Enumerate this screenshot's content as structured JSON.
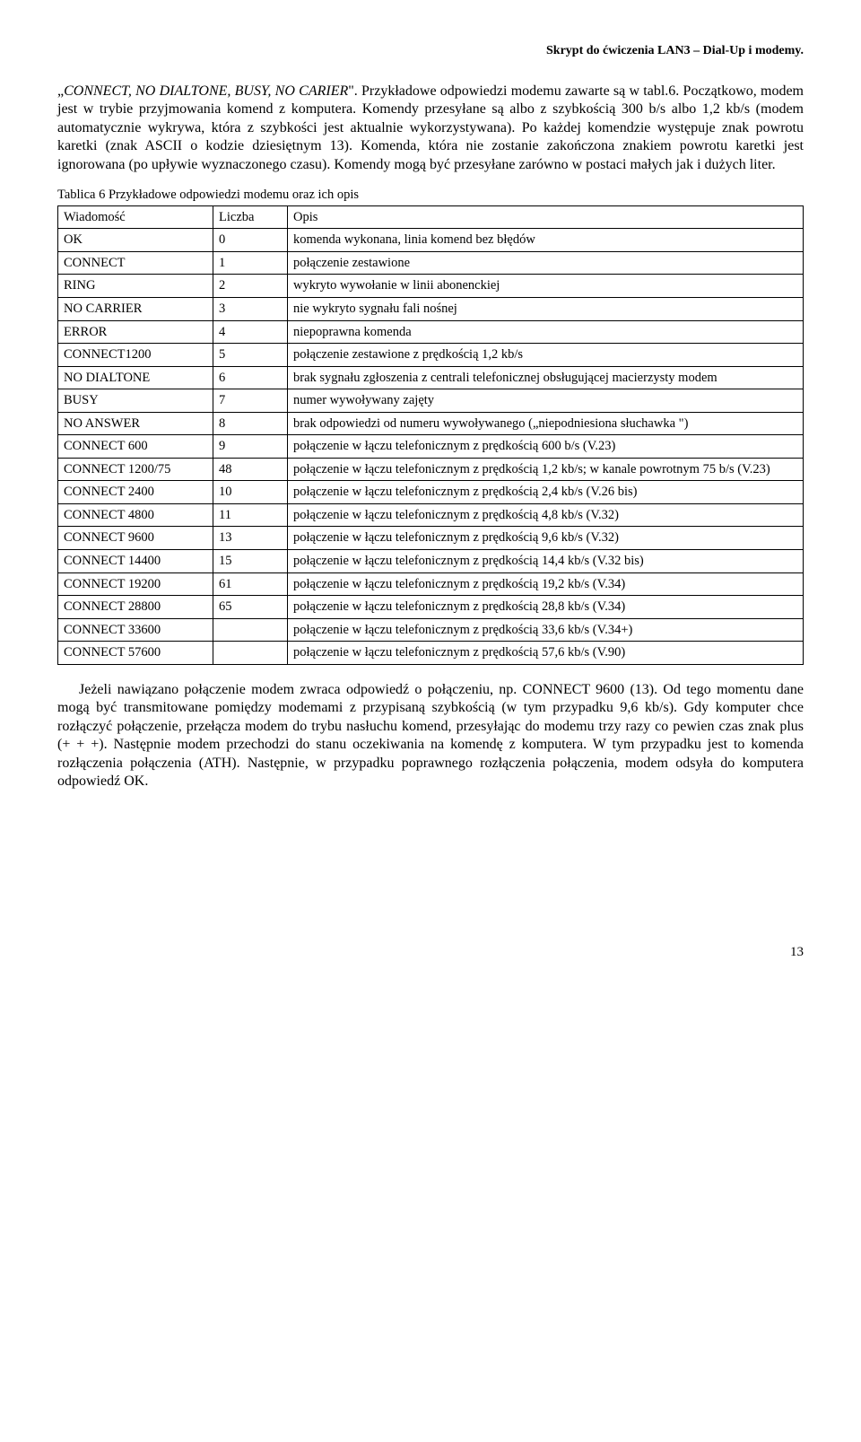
{
  "header": "Skrypt do ćwiczenia LAN3 – Dial-Up i modemy.",
  "para1_lead": "„",
  "para1_italic": "CONNECT, NO DIALTONE, BUSY, NO CARIER",
  "para1_rest": "\". Przykładowe odpowiedzi modemu zawarte są w tabl.6.",
  "para2": "Początkowo, modem jest w trybie przyjmowania komend z komputera. Komendy przesyłane są albo z szybkością 300 b/s albo 1,2 kb/s (modem automatycznie wykrywa, która z szybkości jest aktualnie wykorzystywana). Po każdej komendzie występuje znak powrotu karetki (znak ASCII o kodzie dziesiętnym 13). Komenda, która nie zostanie zakończona znakiem powrotu karetki jest ignorowana (po upływie wyznaczonego czasu). Komendy mogą być przesyłane zarówno w postaci małych jak i dużych liter.",
  "table_caption": "Tablica 6 Przykładowe odpowiedzi modemu oraz ich opis",
  "table_headers": {
    "msg": "Wiadomość",
    "num": "Liczba",
    "desc": "Opis"
  },
  "rows": [
    {
      "msg": "OK",
      "num": "0",
      "desc": "komenda wykonana, linia komend bez błędów"
    },
    {
      "msg": "CONNECT",
      "num": "1",
      "desc": "połączenie zestawione"
    },
    {
      "msg": "RING",
      "num": "2",
      "desc": "wykryto wywołanie w linii abonenckiej"
    },
    {
      "msg": "NO CARRIER",
      "num": "3",
      "desc": "nie wykryto sygnału fali nośnej"
    },
    {
      "msg": "ERROR",
      "num": "4",
      "desc": "niepoprawna komenda"
    },
    {
      "msg": "CONNECT1200",
      "num": "5",
      "desc": "połączenie zestawione z prędkością 1,2 kb/s"
    },
    {
      "msg": "NO DIALTONE",
      "num": "6",
      "desc": "brak sygnału zgłoszenia z centrali telefonicznej obsługującej macierzysty modem"
    },
    {
      "msg": "BUSY",
      "num": "7",
      "desc": "numer wywoływany zajęty"
    },
    {
      "msg": "NO ANSWER",
      "num": "8",
      "desc": "brak odpowiedzi od numeru wywoływanego („niepodniesiona słuchawka \")"
    },
    {
      "msg": "CONNECT 600",
      "num": "9",
      "desc": "połączenie w łączu telefonicznym z prędkością 600 b/s (V.23)"
    },
    {
      "msg": "CONNECT 1200/75",
      "num": "48",
      "desc": "połączenie w łączu telefonicznym z prędkością 1,2 kb/s; w kanale powrotnym 75 b/s (V.23)"
    },
    {
      "msg": "CONNECT 2400",
      "num": "10",
      "desc": "połączenie w łączu telefonicznym z prędkością 2,4 kb/s (V.26 bis)"
    },
    {
      "msg": "CONNECT 4800",
      "num": "11",
      "desc": "połączenie w łączu telefonicznym z prędkością 4,8 kb/s (V.32)"
    },
    {
      "msg": "CONNECT 9600",
      "num": "13",
      "desc": "połączenie w łączu telefonicznym z prędkością 9,6 kb/s (V.32)"
    },
    {
      "msg": "CONNECT 14400",
      "num": "15",
      "desc": "połączenie w łączu telefonicznym z prędkością 14,4 kb/s (V.32 bis)"
    },
    {
      "msg": "CONNECT 19200",
      "num": "61",
      "desc": "połączenie w łączu telefonicznym z prędkością 19,2 kb/s (V.34)"
    },
    {
      "msg": "CONNECT 28800",
      "num": "65",
      "desc": "połączenie w łączu telefonicznym z prędkością 28,8 kb/s (V.34)"
    },
    {
      "msg": "CONNECT 33600",
      "num": "",
      "desc": "połączenie w łączu telefonicznym z prędkością 33,6 kb/s (V.34+)"
    },
    {
      "msg": "CONNECT 57600",
      "num": "",
      "desc": "połączenie w łączu telefonicznym z prędkością 57,6 kb/s (V.90)"
    }
  ],
  "para3_pre": "Jeżeli nawiązano połączenie modem zwraca odpowiedź o połączeniu, np. ",
  "para3_italic1": "CONNECT 9600 (13)",
  "para3_mid": ". Od tego momentu dane mogą być transmitowane pomiędzy modemami z przypisaną szybkością (w tym przypadku 9,6 kb/s). Gdy komputer chce rozłączyć połączenie, przełącza modem do trybu nasłuchu komend, przesyłając do modemu trzy razy co pewien czas znak plus (+ + +). Następnie modem przechodzi do stanu oczekiwania na komendę z komputera. W tym przypadku jest to komenda rozłączenia połączenia (",
  "para3_italic2": "ATH",
  "para3_post": "). Następnie, w przypadku poprawnego rozłączenia połączenia, modem odsyła do komputera odpowiedź ",
  "para3_italic3": "OK",
  "para3_end": ".",
  "page_number": "13"
}
